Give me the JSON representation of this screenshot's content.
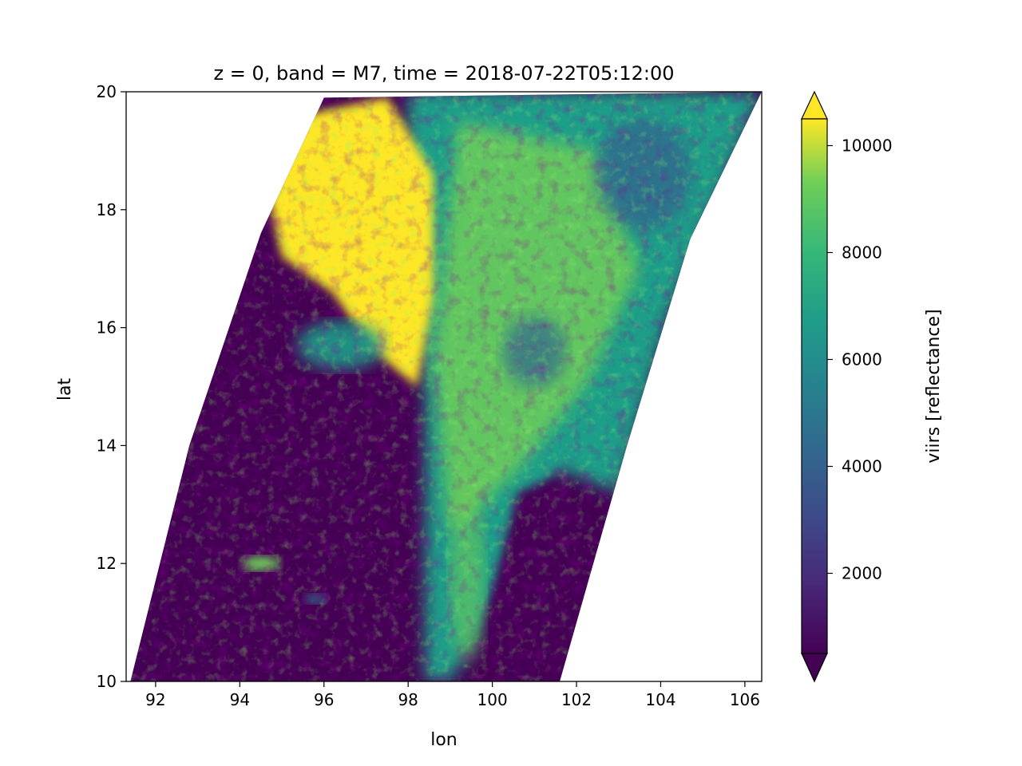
{
  "chart_data": {
    "type": "heatmap",
    "title": "z = 0, band = M7, time = 2018-07-22T05:12:00",
    "xlabel": "lon",
    "ylabel": "lat",
    "xlim": [
      91.3,
      106.4
    ],
    "ylim": [
      10,
      20
    ],
    "xticks": [
      92,
      94,
      96,
      98,
      100,
      102,
      104,
      106
    ],
    "yticks": [
      10,
      12,
      14,
      16,
      18,
      20
    ],
    "grid": false,
    "colormap": "viridis",
    "colorbar": {
      "label": "viirs [reflectance]",
      "range": [
        500,
        10500
      ],
      "ticks": [
        2000,
        4000,
        6000,
        8000,
        10000
      ],
      "extend": "both"
    },
    "swath": {
      "left_edge": [
        [
          91.4,
          10
        ],
        [
          92.8,
          14
        ],
        [
          94.5,
          17.6
        ],
        [
          96.0,
          19.9
        ]
      ],
      "right_edge": [
        [
          101.6,
          10
        ],
        [
          103.2,
          14
        ],
        [
          104.7,
          17.5
        ],
        [
          106.4,
          20
        ]
      ]
    },
    "features": [
      {
        "region": "dark (clear) area west of lon 98, lat 10-15.5",
        "value": 900
      },
      {
        "region": "bright cloud mass lon 95.5-98, lat 15.5-19.5",
        "value": 10000
      },
      {
        "region": "mixed cloud field lon 98-104, lat 13-20",
        "value": 7500
      },
      {
        "region": "dark area lon 100-102, lat 10-13.5",
        "value": 900
      }
    ]
  }
}
